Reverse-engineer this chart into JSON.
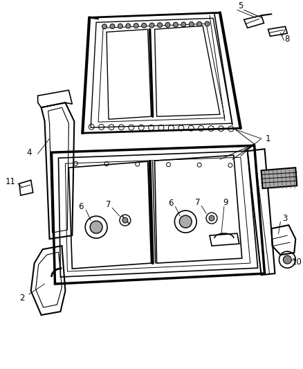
{
  "background_color": "#ffffff",
  "line_color": "#000000",
  "fig_width": 4.38,
  "fig_height": 5.33,
  "dpi": 100,
  "label_fontsize": 8.5
}
